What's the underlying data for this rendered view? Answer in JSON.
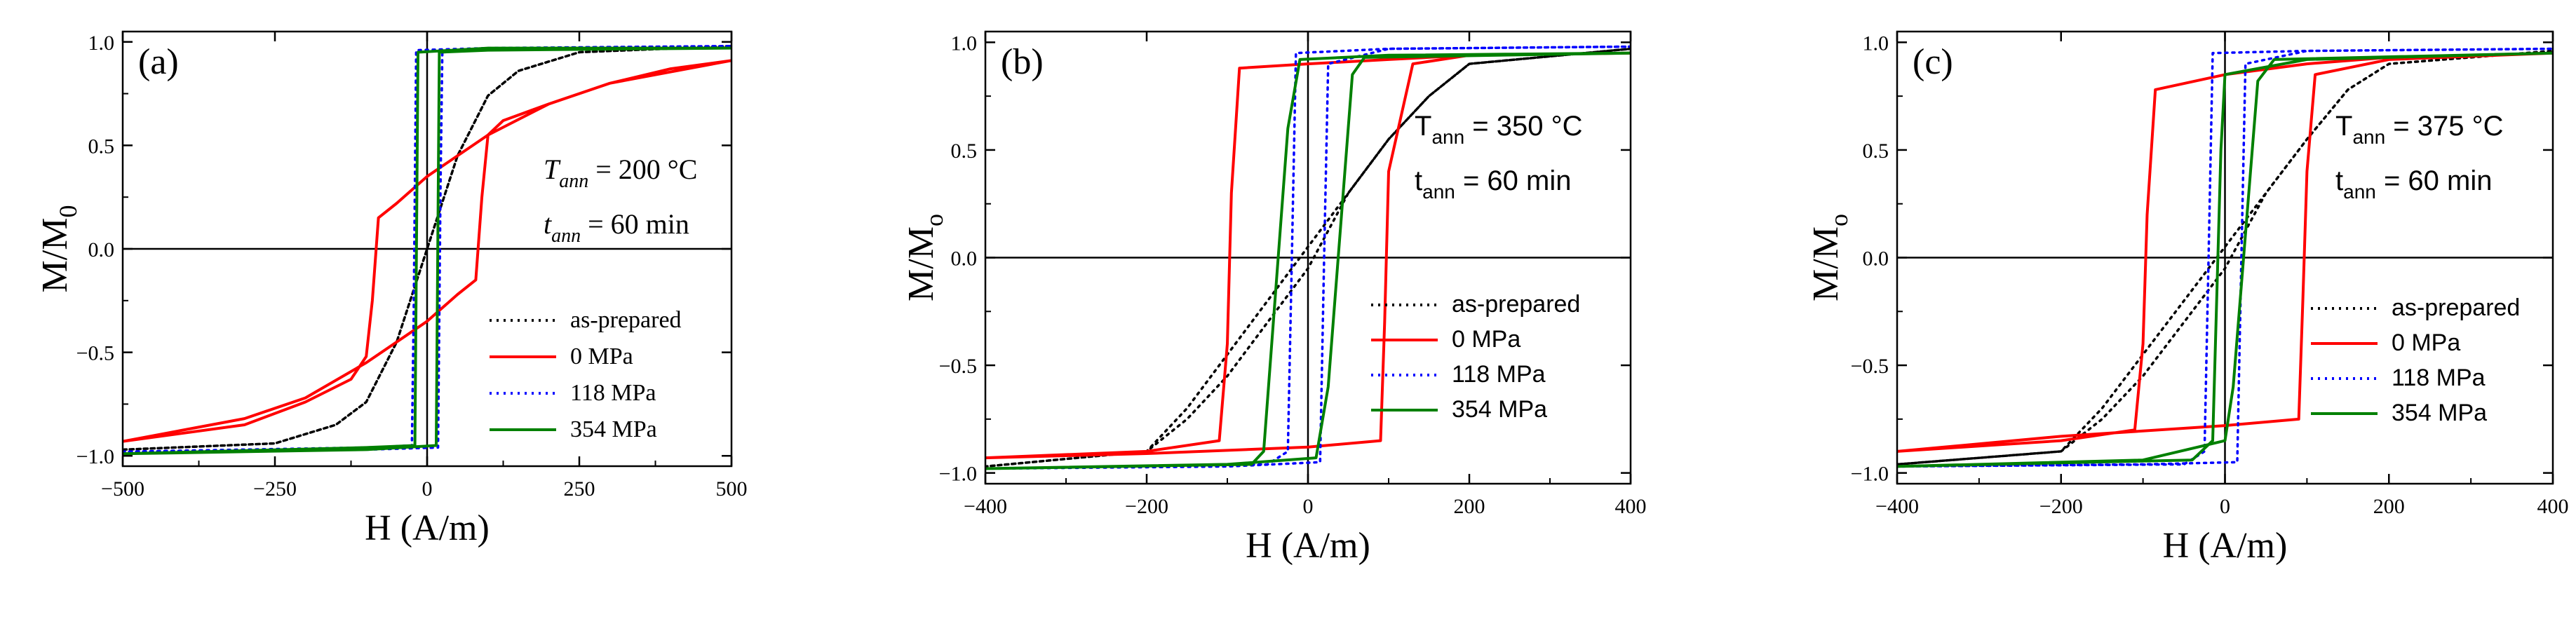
{
  "colors": {
    "as-prepared": "#000000",
    "0 MPa": "#ff0000",
    "118 MPa": "#0000ff",
    "354 MPa": "#008000"
  },
  "chart_data": [
    {
      "panel": "(a)",
      "type": "line",
      "title": "",
      "xlabel": "H (A/m)",
      "ylabel_main": "M/M",
      "ylabel_sub": "0",
      "xlim": [
        -500,
        500
      ],
      "ylim": [
        -1.05,
        1.05
      ],
      "xticks": [
        -500,
        -250,
        0,
        250,
        500
      ],
      "xtick_labels": [
        "−500",
        "−250",
        "0",
        "250",
        "500"
      ],
      "yticks": [
        -1.0,
        -0.5,
        0.0,
        0.5,
        1.0
      ],
      "ytick_labels": [
        "−1.0",
        "−0.5",
        "0.0",
        "0.5",
        "1.0"
      ],
      "annotation": {
        "temperature": {
          "sym": "T",
          "sub": "ann",
          "val": " = 200 °C"
        },
        "time": {
          "sym": "t",
          "sub": "ann",
          "val": " = 60 min"
        },
        "italic": true
      },
      "legend": [
        "as-prepared",
        "0 MPa",
        "118 MPa",
        "354 MPa"
      ],
      "legend_loc": "lower-right",
      "series": [
        {
          "name": "as-prepared",
          "style": "dotted",
          "upper": [
            [
              -500,
              -0.97
            ],
            [
              -250,
              -0.94
            ],
            [
              -150,
              -0.85
            ],
            [
              -100,
              -0.74
            ],
            [
              -50,
              -0.45
            ],
            [
              0,
              0.0
            ],
            [
              50,
              0.45
            ],
            [
              100,
              0.74
            ],
            [
              150,
              0.86
            ],
            [
              250,
              0.95
            ],
            [
              500,
              0.98
            ]
          ],
          "lower": [
            [
              500,
              0.98
            ],
            [
              250,
              0.95
            ],
            [
              150,
              0.86
            ],
            [
              100,
              0.74
            ],
            [
              50,
              0.45
            ],
            [
              0,
              0.0
            ],
            [
              -50,
              -0.45
            ],
            [
              -100,
              -0.74
            ],
            [
              -150,
              -0.85
            ],
            [
              -250,
              -0.94
            ],
            [
              -500,
              -0.97
            ]
          ]
        },
        {
          "name": "0 MPa",
          "style": "solid",
          "upper": [
            [
              -500,
              -0.93
            ],
            [
              -300,
              -0.85
            ],
            [
              -200,
              -0.74
            ],
            [
              -125,
              -0.63
            ],
            [
              -100,
              -0.52
            ],
            [
              -90,
              -0.25
            ],
            [
              -80,
              0.15
            ],
            [
              -50,
              0.22
            ],
            [
              0,
              0.35
            ],
            [
              100,
              0.55
            ],
            [
              200,
              0.7
            ],
            [
              300,
              0.8
            ],
            [
              400,
              0.87
            ],
            [
              500,
              0.91
            ]
          ],
          "lower": [
            [
              500,
              0.91
            ],
            [
              300,
              0.8
            ],
            [
              200,
              0.7
            ],
            [
              125,
              0.62
            ],
            [
              100,
              0.55
            ],
            [
              90,
              0.25
            ],
            [
              80,
              -0.15
            ],
            [
              50,
              -0.22
            ],
            [
              0,
              -0.35
            ],
            [
              -100,
              -0.55
            ],
            [
              -200,
              -0.72
            ],
            [
              -300,
              -0.82
            ],
            [
              -500,
              -0.93
            ]
          ]
        },
        {
          "name": "118 MPa",
          "style": "dotted",
          "upper": [
            [
              -500,
              -0.98
            ],
            [
              -100,
              -0.96
            ],
            [
              -25,
              -0.95
            ],
            [
              -22,
              -0.3
            ],
            [
              -18,
              0.96
            ],
            [
              100,
              0.97
            ],
            [
              500,
              0.98
            ]
          ],
          "lower": [
            [
              500,
              0.98
            ],
            [
              100,
              0.97
            ],
            [
              25,
              0.95
            ],
            [
              22,
              0.3
            ],
            [
              18,
              -0.96
            ],
            [
              -100,
              -0.97
            ],
            [
              -500,
              -0.98
            ]
          ]
        },
        {
          "name": "354 MPa",
          "style": "solid",
          "upper": [
            [
              -500,
              -0.99
            ],
            [
              -100,
              -0.96
            ],
            [
              -20,
              -0.95
            ],
            [
              -15,
              0.95
            ],
            [
              100,
              0.97
            ],
            [
              500,
              0.97
            ]
          ],
          "lower": [
            [
              500,
              0.97
            ],
            [
              100,
              0.96
            ],
            [
              20,
              0.95
            ],
            [
              15,
              -0.95
            ],
            [
              -100,
              -0.97
            ],
            [
              -500,
              -0.99
            ]
          ]
        }
      ]
    },
    {
      "panel": "(b)",
      "type": "line",
      "title": "",
      "xlabel": "H (A/m)",
      "ylabel_main": "M/M",
      "ylabel_sub": "o",
      "xlim": [
        -400,
        400
      ],
      "ylim": [
        -1.05,
        1.05
      ],
      "xticks": [
        -400,
        -200,
        0,
        200,
        400
      ],
      "xtick_labels": [
        "−400",
        "−200",
        "0",
        "200",
        "400"
      ],
      "yticks": [
        -1.0,
        -0.5,
        0.0,
        0.5,
        1.0
      ],
      "ytick_labels": [
        "−1.0",
        "−0.5",
        "0.0",
        "0.5",
        "1.0"
      ],
      "annotation": {
        "temperature": {
          "sym": "T",
          "sub": "ann",
          "val": " = 350 °C"
        },
        "time": {
          "sym": "t",
          "sub": "ann",
          "val": " = 60 min"
        },
        "italic": false
      },
      "legend": [
        "as-prepared",
        "0 MPa",
        "118 MPa",
        "354 MPa"
      ],
      "legend_loc": "lower-right",
      "series": [
        {
          "name": "as-prepared",
          "style": "dotted",
          "upper": [
            [
              -400,
              -0.97
            ],
            [
              -200,
              -0.9
            ],
            [
              -150,
              -0.7
            ],
            [
              -100,
              -0.45
            ],
            [
              -50,
              -0.2
            ],
            [
              0,
              0.05
            ],
            [
              50,
              0.3
            ],
            [
              100,
              0.55
            ],
            [
              150,
              0.75
            ],
            [
              200,
              0.9
            ],
            [
              400,
              0.97
            ]
          ],
          "lower": [
            [
              400,
              0.97
            ],
            [
              200,
              0.9
            ],
            [
              150,
              0.75
            ],
            [
              100,
              0.55
            ],
            [
              50,
              0.3
            ],
            [
              0,
              -0.05
            ],
            [
              -50,
              -0.3
            ],
            [
              -100,
              -0.55
            ],
            [
              -150,
              -0.75
            ],
            [
              -200,
              -0.9
            ],
            [
              -400,
              -0.97
            ]
          ]
        },
        {
          "name": "0 MPa",
          "style": "solid",
          "upper": [
            [
              -400,
              -0.93
            ],
            [
              -200,
              -0.9
            ],
            [
              -110,
              -0.85
            ],
            [
              -100,
              -0.4
            ],
            [
              -95,
              0.3
            ],
            [
              -85,
              0.88
            ],
            [
              0,
              0.9
            ],
            [
              100,
              0.92
            ],
            [
              200,
              0.94
            ],
            [
              400,
              0.95
            ]
          ],
          "lower": [
            [
              400,
              0.95
            ],
            [
              200,
              0.94
            ],
            [
              130,
              0.9
            ],
            [
              100,
              0.4
            ],
            [
              95,
              -0.3
            ],
            [
              90,
              -0.85
            ],
            [
              0,
              -0.88
            ],
            [
              -200,
              -0.91
            ],
            [
              -400,
              -0.93
            ]
          ]
        },
        {
          "name": "118 MPa",
          "style": "dotted",
          "upper": [
            [
              -400,
              -0.98
            ],
            [
              -50,
              -0.96
            ],
            [
              -25,
              -0.9
            ],
            [
              -20,
              0.0
            ],
            [
              -15,
              0.95
            ],
            [
              100,
              0.97
            ],
            [
              400,
              0.98
            ]
          ],
          "lower": [
            [
              400,
              0.98
            ],
            [
              100,
              0.97
            ],
            [
              25,
              0.9
            ],
            [
              20,
              0.0
            ],
            [
              15,
              -0.95
            ],
            [
              -100,
              -0.97
            ],
            [
              -400,
              -0.98
            ]
          ]
        },
        {
          "name": "354 MPa",
          "style": "solid",
          "upper": [
            [
              -400,
              -0.98
            ],
            [
              -70,
              -0.96
            ],
            [
              -55,
              -0.9
            ],
            [
              -25,
              0.6
            ],
            [
              -10,
              0.92
            ],
            [
              100,
              0.94
            ],
            [
              400,
              0.95
            ]
          ],
          "lower": [
            [
              400,
              0.95
            ],
            [
              70,
              0.93
            ],
            [
              55,
              0.85
            ],
            [
              25,
              -0.6
            ],
            [
              10,
              -0.93
            ],
            [
              -100,
              -0.96
            ],
            [
              -400,
              -0.98
            ]
          ]
        }
      ]
    },
    {
      "panel": "(c)",
      "type": "line",
      "title": "",
      "xlabel": "H (A/m)",
      "ylabel_main": "M/M",
      "ylabel_sub": "o",
      "xlim": [
        -400,
        400
      ],
      "ylim": [
        -1.05,
        1.05
      ],
      "xticks": [
        -400,
        -200,
        0,
        200,
        400
      ],
      "xtick_labels": [
        "−400",
        "−200",
        "0",
        "200",
        "400"
      ],
      "yticks": [
        -1.0,
        -0.5,
        0.0,
        0.5,
        1.0
      ],
      "ytick_labels": [
        "−1.0",
        "−0.5",
        "0.0",
        "0.5",
        "1.0"
      ],
      "annotation": {
        "temperature": {
          "sym": "T",
          "sub": "ann",
          "val": " = 375 °C"
        },
        "time": {
          "sym": "t",
          "sub": "ann",
          "val": " = 60 min"
        },
        "italic": false
      },
      "legend": [
        "as-prepared",
        "0 MPa",
        "118 MPa",
        "354 MPa"
      ],
      "legend_loc": "lower-right",
      "series": [
        {
          "name": "as-prepared",
          "style": "dotted",
          "upper": [
            [
              -400,
              -0.96
            ],
            [
              -200,
              -0.9
            ],
            [
              -150,
              -0.7
            ],
            [
              -100,
              -0.45
            ],
            [
              -50,
              -0.2
            ],
            [
              0,
              0.05
            ],
            [
              50,
              0.3
            ],
            [
              100,
              0.55
            ],
            [
              150,
              0.78
            ],
            [
              200,
              0.9
            ],
            [
              400,
              0.96
            ]
          ],
          "lower": [
            [
              400,
              0.96
            ],
            [
              200,
              0.9
            ],
            [
              150,
              0.78
            ],
            [
              100,
              0.55
            ],
            [
              50,
              0.3
            ],
            [
              0,
              -0.05
            ],
            [
              -50,
              -0.3
            ],
            [
              -100,
              -0.55
            ],
            [
              -150,
              -0.75
            ],
            [
              -200,
              -0.9
            ],
            [
              -400,
              -0.96
            ]
          ]
        },
        {
          "name": "0 MPa",
          "style": "solid",
          "upper": [
            [
              -400,
              -0.9
            ],
            [
              -200,
              -0.85
            ],
            [
              -110,
              -0.8
            ],
            [
              -100,
              -0.4
            ],
            [
              -95,
              0.2
            ],
            [
              -85,
              0.78
            ],
            [
              0,
              0.85
            ],
            [
              100,
              0.9
            ],
            [
              200,
              0.93
            ],
            [
              400,
              0.95
            ]
          ],
          "lower": [
            [
              400,
              0.95
            ],
            [
              200,
              0.92
            ],
            [
              110,
              0.85
            ],
            [
              100,
              0.4
            ],
            [
              95,
              -0.2
            ],
            [
              90,
              -0.75
            ],
            [
              0,
              -0.78
            ],
            [
              -200,
              -0.83
            ],
            [
              -400,
              -0.9
            ]
          ]
        },
        {
          "name": "118 MPa",
          "style": "dotted",
          "upper": [
            [
              -400,
              -0.97
            ],
            [
              -50,
              -0.96
            ],
            [
              -25,
              -0.9
            ],
            [
              -20,
              0.0
            ],
            [
              -15,
              0.95
            ],
            [
              100,
              0.96
            ],
            [
              400,
              0.97
            ]
          ],
          "lower": [
            [
              400,
              0.97
            ],
            [
              100,
              0.96
            ],
            [
              25,
              0.9
            ],
            [
              20,
              0.0
            ],
            [
              15,
              -0.95
            ],
            [
              -100,
              -0.96
            ],
            [
              -400,
              -0.97
            ]
          ]
        },
        {
          "name": "354 MPa",
          "style": "solid",
          "upper": [
            [
              -400,
              -0.97
            ],
            [
              -40,
              -0.94
            ],
            [
              -15,
              -0.85
            ],
            [
              -5,
              0.5
            ],
            [
              0,
              0.85
            ],
            [
              100,
              0.92
            ],
            [
              400,
              0.95
            ]
          ],
          "lower": [
            [
              400,
              0.95
            ],
            [
              60,
              0.92
            ],
            [
              40,
              0.82
            ],
            [
              10,
              -0.6
            ],
            [
              0,
              -0.85
            ],
            [
              -100,
              -0.94
            ],
            [
              -400,
              -0.97
            ]
          ]
        }
      ]
    }
  ]
}
